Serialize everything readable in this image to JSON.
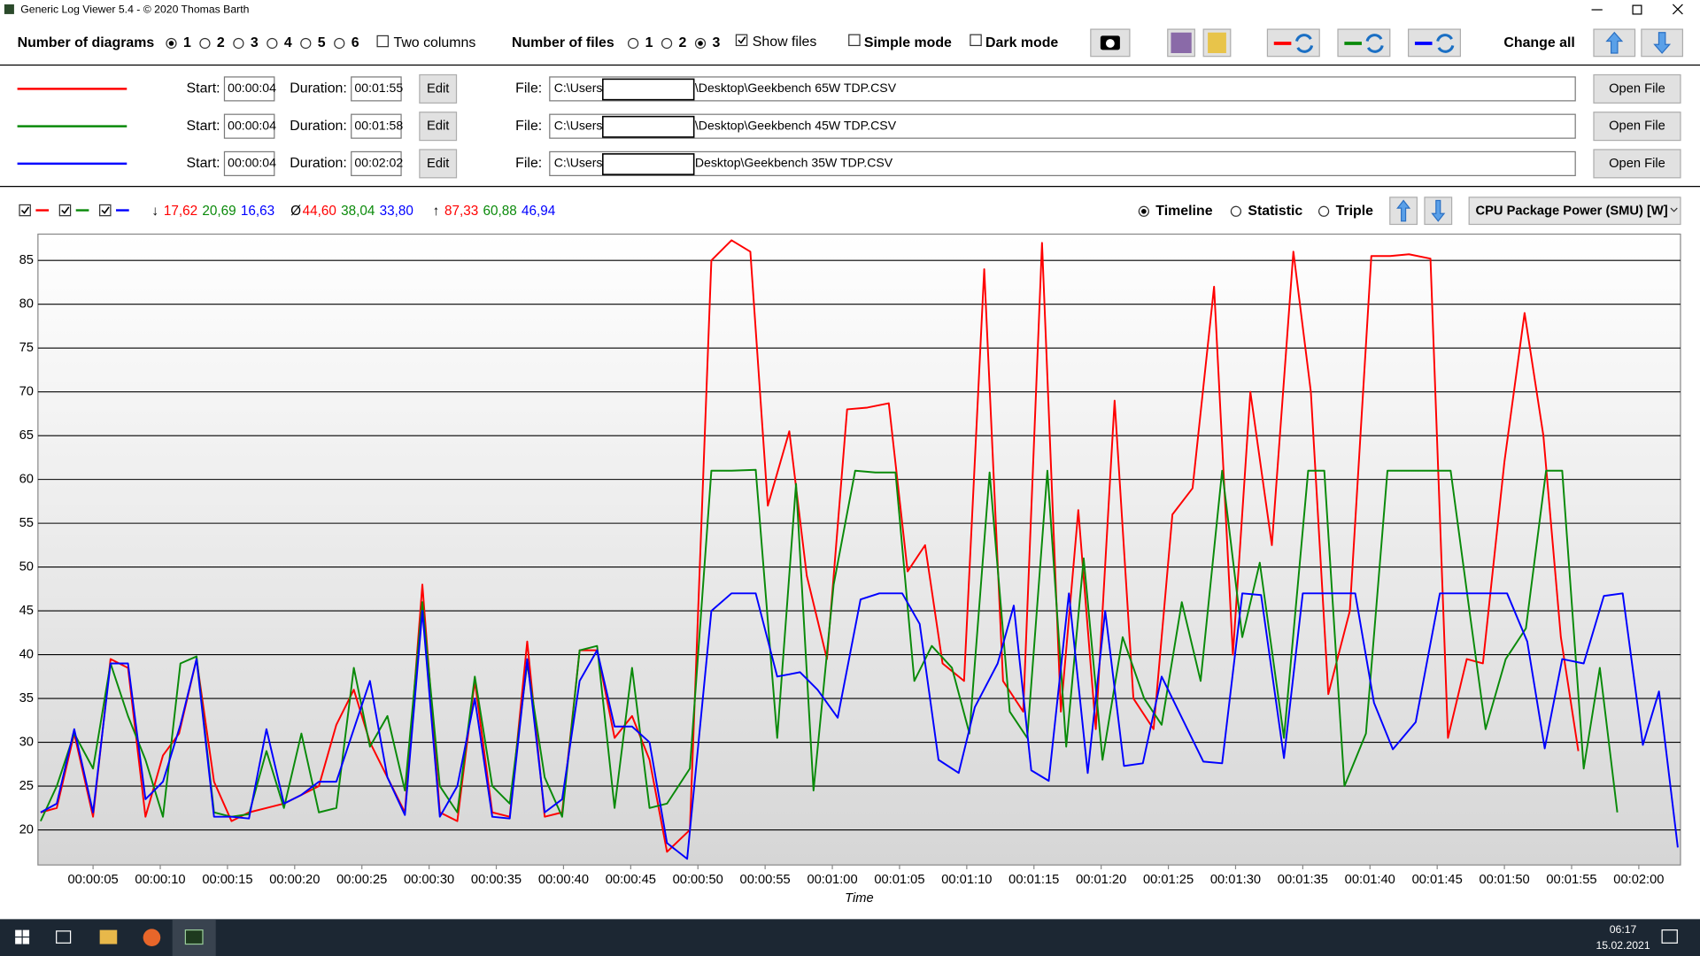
{
  "window": {
    "title": "Generic Log Viewer 5.4 - © 2020 Thomas Barth"
  },
  "toolbar": {
    "diagrams_label": "Number of diagrams",
    "diagram_options": [
      "1",
      "2",
      "3",
      "4",
      "5",
      "6"
    ],
    "diagram_selected": 0,
    "two_columns": {
      "label": "Two columns",
      "checked": false
    },
    "files_label": "Number of files",
    "file_options": [
      "1",
      "2",
      "3"
    ],
    "file_selected": 2,
    "show_files": {
      "label": "Show files",
      "checked": true
    },
    "simple_mode": {
      "label": "Simple mode",
      "checked": false
    },
    "dark_mode": {
      "label": "Dark mode",
      "checked": false
    },
    "change_all": "Change all"
  },
  "files": [
    {
      "start_label": "Start:",
      "start": "00:00:04",
      "duration_label": "Duration:",
      "duration": "00:01:55",
      "edit": "Edit",
      "file_label": "File:",
      "path_prefix": "C:\\Users\\",
      "path_suffix": "\\Desktop\\Geekbench 65W TDP.CSV",
      "open": "Open File"
    },
    {
      "start_label": "Start:",
      "start": "00:00:04",
      "duration_label": "Duration:",
      "duration": "00:01:58",
      "edit": "Edit",
      "file_label": "File:",
      "path_prefix": "C:\\Users\\",
      "path_suffix": "\\Desktop\\Geekbench 45W TDP.CSV",
      "open": "Open File"
    },
    {
      "start_label": "Start:",
      "start": "00:00:04",
      "duration_label": "Duration:",
      "duration": "00:02:02",
      "edit": "Edit",
      "file_label": "File:",
      "path_prefix": "C:\\Users\\",
      "path_suffix": "Desktop\\Geekbench 35W TDP.CSV",
      "open": "Open File"
    }
  ],
  "stats": {
    "min_symbol": "↓",
    "min": [
      "17,62",
      "20,69",
      "16,63"
    ],
    "avg_symbol": "Ø",
    "avg": [
      "44,60",
      "38,04",
      "33,80"
    ],
    "max_symbol": "↑",
    "max": [
      "87,33",
      "60,88",
      "46,94"
    ]
  },
  "view": {
    "modes": [
      "Timeline",
      "Statistic",
      "Triple"
    ],
    "selected": 0,
    "channel": "CPU Package Power (SMU) [W]"
  },
  "chart_data": {
    "type": "line",
    "x_label": "Time",
    "grid": true,
    "xlim": [
      0.9,
      123.1
    ],
    "ylim": [
      16,
      88
    ],
    "xticks": [
      {
        "value": 5,
        "label": "00:00:05"
      },
      {
        "value": 10,
        "label": "00:00:10"
      },
      {
        "value": 15,
        "label": "00:00:15"
      },
      {
        "value": 20,
        "label": "00:00:20"
      },
      {
        "value": 25,
        "label": "00:00:25"
      },
      {
        "value": 30,
        "label": "00:00:30"
      },
      {
        "value": 35,
        "label": "00:00:35"
      },
      {
        "value": 40,
        "label": "00:00:40"
      },
      {
        "value": 45,
        "label": "00:00:45"
      },
      {
        "value": 50,
        "label": "00:00:50"
      },
      {
        "value": 55,
        "label": "00:00:55"
      },
      {
        "value": 60,
        "label": "00:01:00"
      },
      {
        "value": 65,
        "label": "00:01:05"
      },
      {
        "value": 70,
        "label": "00:01:10"
      },
      {
        "value": 75,
        "label": "00:01:15"
      },
      {
        "value": 80,
        "label": "00:01:20"
      },
      {
        "value": 85,
        "label": "00:01:25"
      },
      {
        "value": 90,
        "label": "00:01:30"
      },
      {
        "value": 95,
        "label": "00:01:35"
      },
      {
        "value": 100,
        "label": "00:01:40"
      },
      {
        "value": 105,
        "label": "00:01:45"
      },
      {
        "value": 110,
        "label": "00:01:50"
      },
      {
        "value": 115,
        "label": "00:01:55"
      },
      {
        "value": 120,
        "label": "00:02:00"
      }
    ],
    "yticks": [
      20,
      25,
      30,
      35,
      40,
      45,
      50,
      55,
      60,
      65,
      70,
      75,
      80,
      85
    ],
    "series": [
      {
        "color": "#ff0000",
        "x": [
          1.1,
          2.3,
          3.6,
          5.0,
          6.3,
          7.6,
          8.9,
          10.2,
          11.4,
          12.7,
          14.0,
          15.3,
          16.6,
          17.9,
          19.2,
          20.5,
          21.8,
          23.1,
          24.4,
          25.6,
          26.9,
          28.2,
          29.5,
          30.8,
          32.1,
          33.4,
          34.7,
          36.0,
          37.3,
          38.6,
          39.9,
          41.2,
          42.5,
          43.8,
          45.1,
          46.4,
          47.7,
          49.4,
          51.0,
          52.5,
          53.9,
          55.2,
          56.8,
          58.1,
          59.6,
          61.1,
          62.6,
          64.2,
          65.6,
          66.9,
          68.2,
          69.8,
          71.3,
          72.7,
          74.2,
          75.6,
          77.0,
          78.3,
          79.6,
          81.0,
          82.4,
          83.9,
          85.3,
          86.8,
          88.4,
          89.8,
          91.1,
          92.7,
          94.3,
          95.6,
          96.9,
          98.5,
          100.1,
          101.5,
          102.9,
          104.5,
          105.8,
          107.2,
          108.4,
          110.0,
          111.5,
          112.9,
          114.2,
          115.5
        ],
        "values": [
          22,
          22.5,
          31,
          21.5,
          39.5,
          38.5,
          21.5,
          28.5,
          31,
          39.5,
          25.5,
          21,
          22,
          22.5,
          23,
          24,
          25,
          32,
          36,
          30,
          26,
          22,
          48,
          22,
          21,
          37,
          22,
          21.5,
          41.5,
          21.5,
          22,
          40.5,
          40.5,
          30.5,
          33,
          28,
          17.5,
          20,
          85,
          87.3,
          86,
          57,
          65.5,
          49,
          39.5,
          68,
          68.2,
          68.7,
          49.5,
          52.5,
          39,
          37,
          84,
          37,
          33.5,
          87,
          33.5,
          56.5,
          31.5,
          69,
          35,
          31.5,
          56,
          59,
          82,
          40,
          70,
          52.5,
          86,
          70,
          35.5,
          45,
          85.5,
          85.5,
          85.7,
          85.2,
          30.5,
          39.5,
          39,
          62,
          79,
          65,
          42,
          29
        ]
      },
      {
        "color": "#0a8a0a",
        "x": [
          1.1,
          2.3,
          3.6,
          5.0,
          6.3,
          7.6,
          8.9,
          10.2,
          11.5,
          12.7,
          14.0,
          15.3,
          16.6,
          17.9,
          19.2,
          20.5,
          21.8,
          23.1,
          24.4,
          25.6,
          26.9,
          28.2,
          29.5,
          30.8,
          32.1,
          33.4,
          34.7,
          36.0,
          37.3,
          38.6,
          39.9,
          41.2,
          42.5,
          43.8,
          45.1,
          46.4,
          47.7,
          49.4,
          51.0,
          52.5,
          54.3,
          55.9,
          57.3,
          58.6,
          60.1,
          61.7,
          63.2,
          64.7,
          66.1,
          67.4,
          68.9,
          70.2,
          71.7,
          73.2,
          74.5,
          76.0,
          77.4,
          78.7,
          80.1,
          81.6,
          83.2,
          84.5,
          86.0,
          87.4,
          89.0,
          90.5,
          91.8,
          93.6,
          95.4,
          96.6,
          98.1,
          99.7,
          101.3,
          102.9,
          104.5,
          106.0,
          107.4,
          108.6,
          110.1,
          111.6,
          113.1,
          114.3,
          115.9,
          117.1,
          118.4
        ],
        "values": [
          21,
          25,
          31,
          27,
          39,
          33,
          28,
          21.5,
          39,
          39.8,
          22,
          21.5,
          21.8,
          29,
          22.5,
          31,
          22,
          22.5,
          38.5,
          29.5,
          33,
          24.5,
          46,
          25,
          22,
          37.5,
          25,
          23,
          39,
          26,
          21.5,
          40.5,
          41,
          22.5,
          38.5,
          22.5,
          23,
          27,
          61,
          61,
          61.1,
          30.5,
          59.5,
          24.5,
          48,
          61,
          60.8,
          60.8,
          37,
          41,
          38.5,
          31,
          60.8,
          33.5,
          30.5,
          61,
          29.5,
          51,
          28,
          42,
          35,
          32,
          46,
          37,
          61,
          42,
          50.5,
          30.5,
          61,
          61,
          25,
          31,
          61,
          61,
          61,
          61,
          45,
          31.5,
          39.5,
          43,
          61,
          61,
          27,
          38.5,
          22
        ]
      },
      {
        "color": "#0000ff",
        "x": [
          1.1,
          2.3,
          3.6,
          5.0,
          6.3,
          7.6,
          8.9,
          10.2,
          11.5,
          12.7,
          14.0,
          15.3,
          16.6,
          17.9,
          19.2,
          20.5,
          21.8,
          23.1,
          24.4,
          25.6,
          26.9,
          28.2,
          29.5,
          30.8,
          32.1,
          33.4,
          34.7,
          36.0,
          37.3,
          38.6,
          39.9,
          41.2,
          42.5,
          43.8,
          45.1,
          46.4,
          47.7,
          49.2,
          51.0,
          52.5,
          54.3,
          55.9,
          57.6,
          58.9,
          60.4,
          62.1,
          63.5,
          65.2,
          66.5,
          67.9,
          69.4,
          70.6,
          72.3,
          73.5,
          74.8,
          76.1,
          77.6,
          79.0,
          80.3,
          81.7,
          83.1,
          84.5,
          86.0,
          87.6,
          89.0,
          90.5,
          91.9,
          93.6,
          95.0,
          96.6,
          98.9,
          100.3,
          101.7,
          103.4,
          105.2,
          106.6,
          108.2,
          110.2,
          111.7,
          113.0,
          114.3,
          115.9,
          117.4,
          118.8,
          120.3,
          121.5,
          122.9
        ],
        "values": [
          22,
          23,
          31.5,
          22,
          39,
          39,
          23.5,
          25.5,
          32,
          39.5,
          21.5,
          21.5,
          21.3,
          31.5,
          23,
          24,
          25.5,
          25.5,
          31.5,
          37,
          26,
          21.7,
          45,
          21.5,
          25,
          35,
          21.5,
          21.3,
          39.5,
          22,
          23.5,
          37,
          40.5,
          31.8,
          31.8,
          30,
          18.5,
          16.7,
          45,
          47,
          47,
          37.5,
          38,
          36,
          32.8,
          46.3,
          47,
          47,
          43.5,
          28,
          26.5,
          34,
          39,
          45.6,
          26.8,
          25.6,
          47,
          26.5,
          45,
          27.3,
          27.6,
          37.5,
          32.8,
          27.8,
          27.6,
          47,
          46.8,
          28.2,
          47,
          47,
          47,
          34.5,
          29.2,
          32.3,
          47,
          47,
          47,
          47,
          41.5,
          29.3,
          39.5,
          39,
          46.7,
          47,
          29.7,
          35.8,
          18
        ]
      }
    ]
  },
  "taskbar": {
    "time": "06:17",
    "date": "15.02.2021"
  }
}
